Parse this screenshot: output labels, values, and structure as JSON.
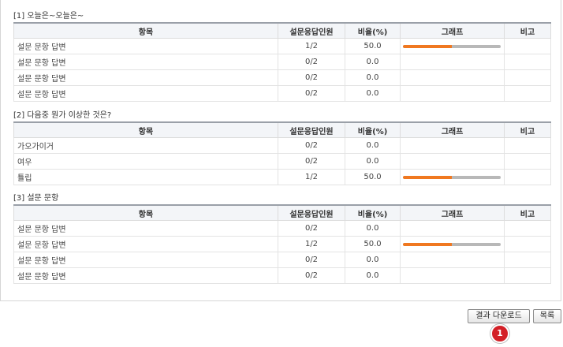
{
  "columns": {
    "item": "항목",
    "respondents": "설문응답인원",
    "ratio": "비율(%)",
    "graph": "그래프",
    "note": "비고"
  },
  "sections": [
    {
      "title": "[1] 오늘은~오늘은~",
      "rows": [
        {
          "item": "설문 문항 답변",
          "respondents": "1/2",
          "ratio": "50.0",
          "fill": 0.5
        },
        {
          "item": "설문 문항 답변",
          "respondents": "0/2",
          "ratio": "0.0",
          "fill": 0
        },
        {
          "item": "설문 문항 답변",
          "respondents": "0/2",
          "ratio": "0.0",
          "fill": 0
        },
        {
          "item": "설문 문항 답변",
          "respondents": "0/2",
          "ratio": "0.0",
          "fill": 0
        }
      ]
    },
    {
      "title": "[2] 다음중 뭔가 이상한 것은?",
      "rows": [
        {
          "item": "가오가이거",
          "respondents": "0/2",
          "ratio": "0.0",
          "fill": 0
        },
        {
          "item": "여우",
          "respondents": "0/2",
          "ratio": "0.0",
          "fill": 0
        },
        {
          "item": "튤립",
          "respondents": "1/2",
          "ratio": "50.0",
          "fill": 0.5
        }
      ]
    },
    {
      "title": "[3] 설문 문항",
      "rows": [
        {
          "item": "설문 문항 답변",
          "respondents": "0/2",
          "ratio": "0.0",
          "fill": 0
        },
        {
          "item": "설문 문항 답변",
          "respondents": "1/2",
          "ratio": "50.0",
          "fill": 0.5
        },
        {
          "item": "설문 문항 답변",
          "respondents": "0/2",
          "ratio": "0.0",
          "fill": 0
        },
        {
          "item": "설문 문항 답변",
          "respondents": "0/2",
          "ratio": "0.0",
          "fill": 0
        }
      ]
    }
  ],
  "buttons": {
    "download": "결과 다운로드",
    "list": "목록"
  },
  "callout": "1",
  "colors": {
    "bar_fill": "#f07820",
    "bar_track": "#b8b8b8",
    "callout": "#d32027"
  }
}
